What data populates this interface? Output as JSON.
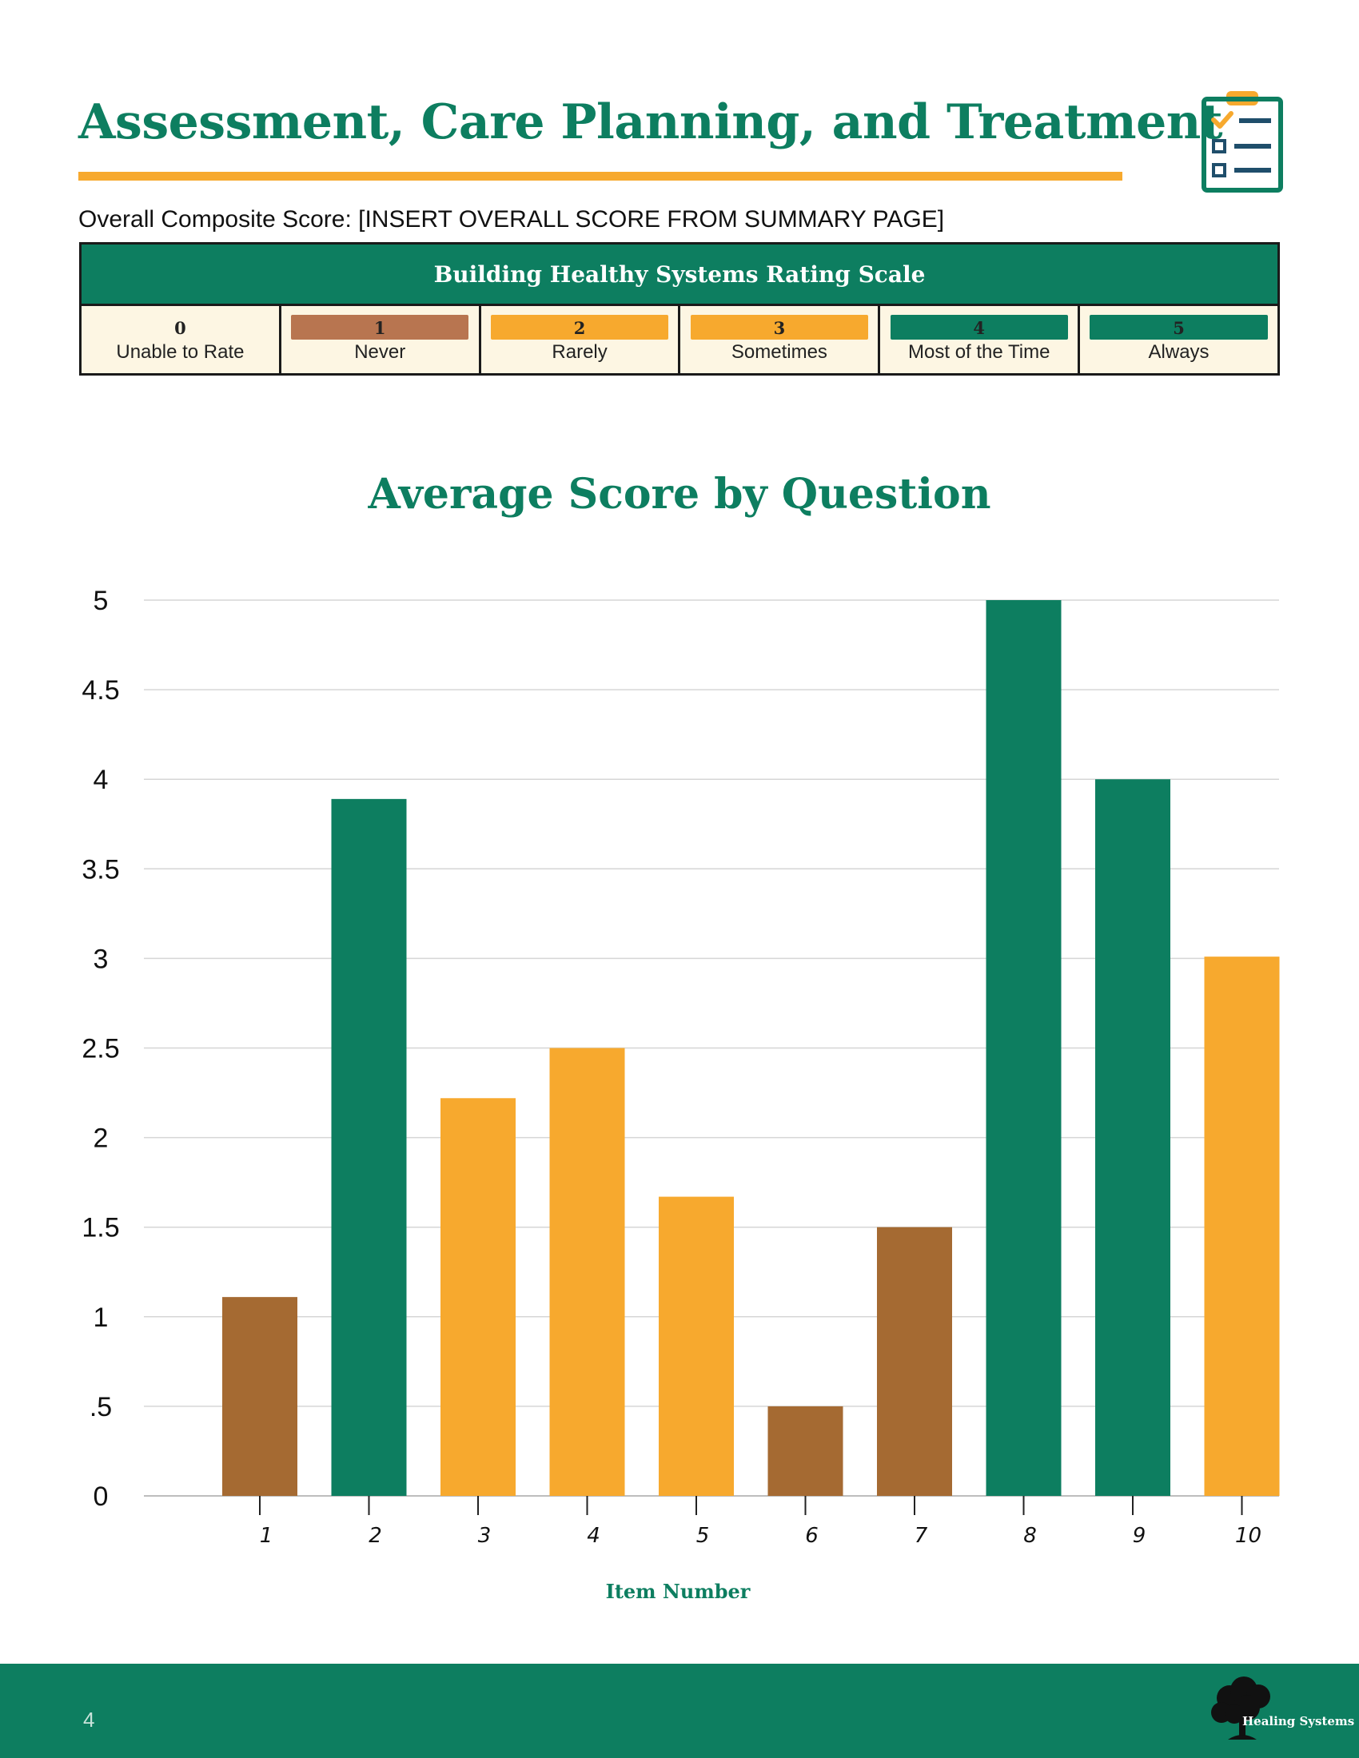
{
  "header": {
    "title": "Assessment, Care Planning, and Treatment",
    "composite_score": "Overall Composite Score: [INSERT OVERALL SCORE FROM SUMMARY PAGE]"
  },
  "rating_scale": {
    "title": "Building Healthy Systems Rating Scale",
    "levels": [
      {
        "value": "0",
        "label": "Unable to Rate",
        "color": "#fdf6e3"
      },
      {
        "value": "1",
        "label": "Never",
        "color": "#b87550"
      },
      {
        "value": "2",
        "label": "Rarely",
        "color": "#f7a92e"
      },
      {
        "value": "3",
        "label": "Sometimes",
        "color": "#f7a92e"
      },
      {
        "value": "4",
        "label": "Most of the Time",
        "color": "#0d7e60"
      },
      {
        "value": "5",
        "label": "Always",
        "color": "#0d7e60"
      }
    ]
  },
  "chart_data": {
    "type": "bar",
    "title": "Average Score by Question",
    "xlabel": "Item Number",
    "ylabel": "",
    "categories": [
      "1",
      "2",
      "3",
      "4",
      "5",
      "6",
      "7",
      "8",
      "9",
      "10"
    ],
    "values": [
      1.11,
      3.89,
      2.22,
      2.5,
      1.67,
      0.5,
      1.5,
      5,
      4,
      3.01
    ],
    "bar_colors": [
      "#a56a32",
      "#0d7e60",
      "#f7a92e",
      "#f7a92e",
      "#f7a92e",
      "#a56a32",
      "#a56a32",
      "#0d7e60",
      "#0d7e60",
      "#f7a92e"
    ],
    "ylim": [
      0,
      5
    ],
    "yticks": [
      "0",
      ".5",
      "1",
      "1.5",
      "2",
      "2.5",
      "3",
      "3.5",
      "4",
      "4.5",
      "5"
    ],
    "ytick_values": [
      0,
      0.5,
      1,
      1.5,
      2,
      2.5,
      3,
      3.5,
      4,
      4.5,
      5
    ],
    "grid": true
  },
  "footer": {
    "page_number": "4",
    "logo_text": "Healing Systems"
  }
}
